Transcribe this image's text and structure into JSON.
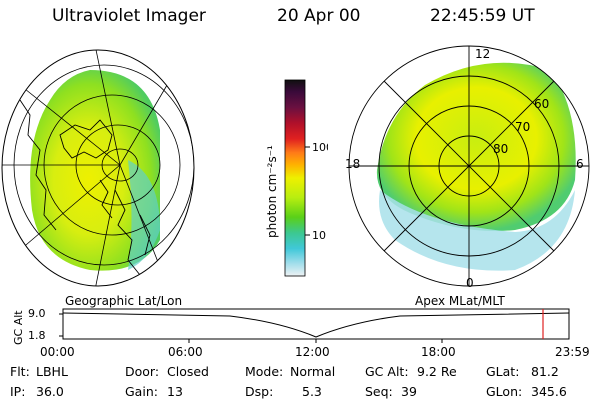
{
  "header": {
    "instrument": "Ultraviolet Imager",
    "date": "20 Apr 00",
    "time": "22:45:59 UT"
  },
  "colorbar": {
    "unit_label": "photon cm⁻²s⁻¹",
    "ticks": [
      "100",
      "10"
    ],
    "colors": [
      "#101010",
      "#3a0a3a",
      "#6a1040",
      "#b0102a",
      "#e02020",
      "#ff7a18",
      "#ffb000",
      "#eef000",
      "#b8ee10",
      "#5ad018",
      "#3cc890",
      "#40c8d8",
      "#9adcea",
      "#eef2f4"
    ]
  },
  "geo_map": {
    "projection_label": "Geographic Lat/Lon"
  },
  "polar_plot": {
    "projection_label": "Apex MLat/MLT",
    "mlt_labels": {
      "top": "12",
      "left": "18",
      "right": "6",
      "bottom": "0"
    },
    "lat_labels": [
      "60",
      "70",
      "80"
    ]
  },
  "altitude_plot": {
    "axis_label": "GC Alt",
    "y_ticks": [
      "9.0",
      "1.8"
    ],
    "x_ticks": [
      "00:00",
      "06:00",
      "12:00",
      "18:00",
      "23:59"
    ],
    "marker_time": "22:45:59"
  },
  "info": {
    "flt_label": "Flt:",
    "flt_value": "LBHL",
    "ip_label": "IP:",
    "ip_value": "36.0",
    "door_label": "Door:",
    "door_value": "Closed",
    "gain_label": "Gain:",
    "gain_value": "13",
    "mode_label": "Mode:",
    "mode_value": "Normal",
    "dsp_label": "Dsp:",
    "dsp_value": "5.3",
    "gcalt_label": "GC Alt:",
    "gcalt_value": "9.2 Re",
    "seq_label": "Seq:",
    "seq_value": "39",
    "glat_label": "GLat:",
    "glat_value": "81.2",
    "glon_label": "GLon:",
    "glon_value": "345.6"
  }
}
